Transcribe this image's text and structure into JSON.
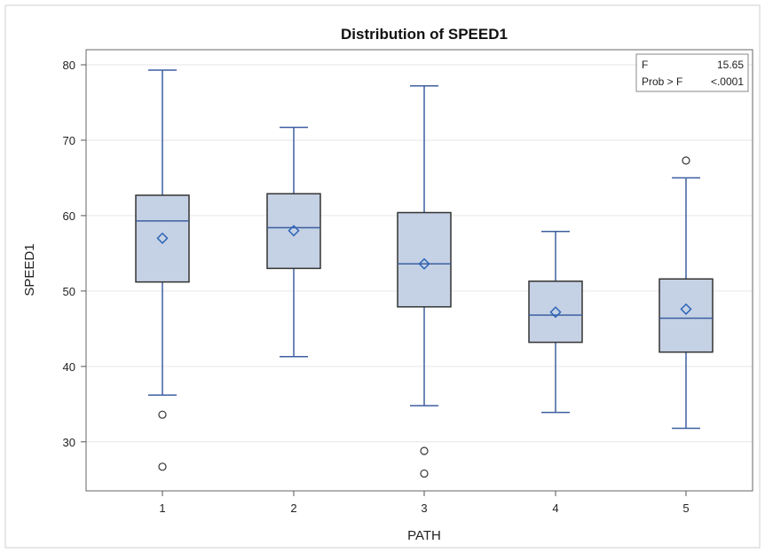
{
  "chart_data": {
    "type": "boxplot",
    "title": "Distribution of SPEED1",
    "xlabel": "PATH",
    "ylabel": "SPEED1",
    "ylim": [
      23.5,
      82
    ],
    "yticks": [
      30,
      40,
      50,
      60,
      70,
      80
    ],
    "grid": true,
    "categories": [
      "1",
      "2",
      "3",
      "4",
      "5"
    ],
    "boxes": [
      {
        "category": "1",
        "whisker_low": 36.2,
        "q1": 51.2,
        "median": 59.3,
        "q3": 62.7,
        "whisker_high": 79.3,
        "mean": 57.0,
        "outliers": [
          33.6,
          26.7
        ]
      },
      {
        "category": "2",
        "whisker_low": 41.3,
        "q1": 53.0,
        "median": 58.4,
        "q3": 62.9,
        "whisker_high": 71.7,
        "mean": 58.0,
        "outliers": []
      },
      {
        "category": "3",
        "whisker_low": 34.8,
        "q1": 47.9,
        "median": 53.6,
        "q3": 60.4,
        "whisker_high": 77.2,
        "mean": 53.6,
        "outliers": [
          28.8,
          25.8
        ]
      },
      {
        "category": "4",
        "whisker_low": 33.9,
        "q1": 43.2,
        "median": 46.8,
        "q3": 51.3,
        "whisker_high": 57.9,
        "mean": 47.2,
        "outliers": []
      },
      {
        "category": "5",
        "whisker_low": 31.8,
        "q1": 41.9,
        "median": 46.4,
        "q3": 51.6,
        "whisker_high": 65.0,
        "mean": 47.6,
        "outliers": [
          67.3
        ]
      }
    ],
    "stats_inset": {
      "position": "top-right",
      "rows": [
        {
          "label": "F",
          "value": "15.65"
        },
        {
          "label": "Prob > F",
          "value": "<.0001"
        }
      ]
    },
    "colors": {
      "box_fill": "#c5d1e4",
      "box_edge": "#333333",
      "whisker": "#3d5fa0",
      "median": "#3d5fa0",
      "mean_marker": "#2b63b8",
      "outlier": "#333333",
      "grid": "#e6e6e6",
      "wall": "#666666",
      "frame": "#c8c8c8"
    }
  }
}
